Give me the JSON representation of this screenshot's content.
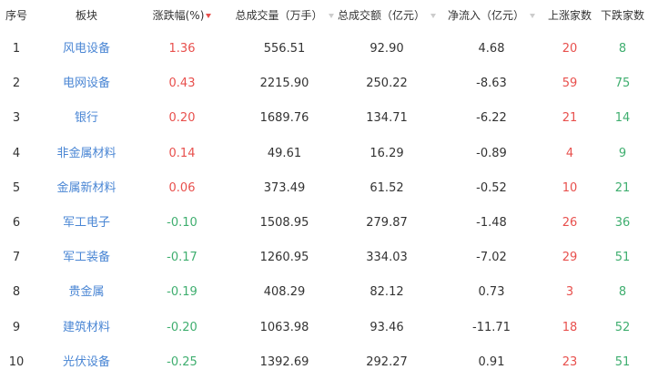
{
  "colors": {
    "up": "#e8504d",
    "down": "#3fae6f",
    "link": "#4a86d4"
  },
  "headers": [
    "序号",
    "板块",
    "涨跌幅(%)",
    "总成交量（万手）",
    "总成交额（亿元）",
    "净流入（亿元）",
    "上涨家数",
    "下跌家数"
  ],
  "sort_icons": {
    "active": "caret-down-red",
    "inactive": "caret-down-gray"
  },
  "rows": [
    {
      "no": "1",
      "name": "风电设备",
      "change": "1.36",
      "volume": "556.51",
      "amount": "92.90",
      "inflow": "4.68",
      "up": "20",
      "down": "8"
    },
    {
      "no": "2",
      "name": "电网设备",
      "change": "0.43",
      "volume": "2215.90",
      "amount": "250.22",
      "inflow": "-8.63",
      "up": "59",
      "down": "75"
    },
    {
      "no": "3",
      "name": "银行",
      "change": "0.20",
      "volume": "1689.76",
      "amount": "134.71",
      "inflow": "-6.22",
      "up": "21",
      "down": "14"
    },
    {
      "no": "4",
      "name": "非金属材料",
      "change": "0.14",
      "volume": "49.61",
      "amount": "16.29",
      "inflow": "-0.89",
      "up": "4",
      "down": "9"
    },
    {
      "no": "5",
      "name": "金属新材料",
      "change": "0.06",
      "volume": "373.49",
      "amount": "61.52",
      "inflow": "-0.52",
      "up": "10",
      "down": "21"
    },
    {
      "no": "6",
      "name": "军工电子",
      "change": "-0.10",
      "volume": "1508.95",
      "amount": "279.87",
      "inflow": "-1.48",
      "up": "26",
      "down": "36"
    },
    {
      "no": "7",
      "name": "军工装备",
      "change": "-0.17",
      "volume": "1260.95",
      "amount": "334.03",
      "inflow": "-7.02",
      "up": "29",
      "down": "51"
    },
    {
      "no": "8",
      "name": "贵金属",
      "change": "-0.19",
      "volume": "408.29",
      "amount": "82.12",
      "inflow": "0.73",
      "up": "3",
      "down": "8"
    },
    {
      "no": "9",
      "name": "建筑材料",
      "change": "-0.20",
      "volume": "1063.98",
      "amount": "93.46",
      "inflow": "-11.71",
      "up": "18",
      "down": "52"
    },
    {
      "no": "10",
      "name": "光伏设备",
      "change": "-0.25",
      "volume": "1392.69",
      "amount": "292.27",
      "inflow": "0.91",
      "up": "23",
      "down": "51"
    }
  ]
}
